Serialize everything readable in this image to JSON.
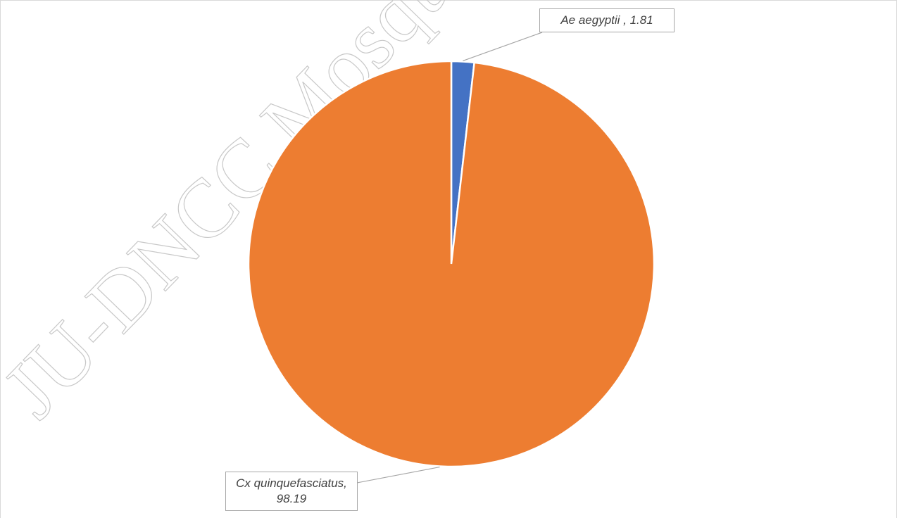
{
  "chart_data": {
    "type": "pie",
    "categories": [
      "Ae aegyptii",
      "Cx quinquefasciatus"
    ],
    "values": [
      1.81,
      98.19
    ],
    "value_labels": [
      "Ae aegyptii , 1.81",
      "Cx quinquefasciatus, 98.19"
    ],
    "colors": [
      "#4472c4",
      "#ed7d31"
    ],
    "watermark": "JU-DNCC Mosquito"
  }
}
